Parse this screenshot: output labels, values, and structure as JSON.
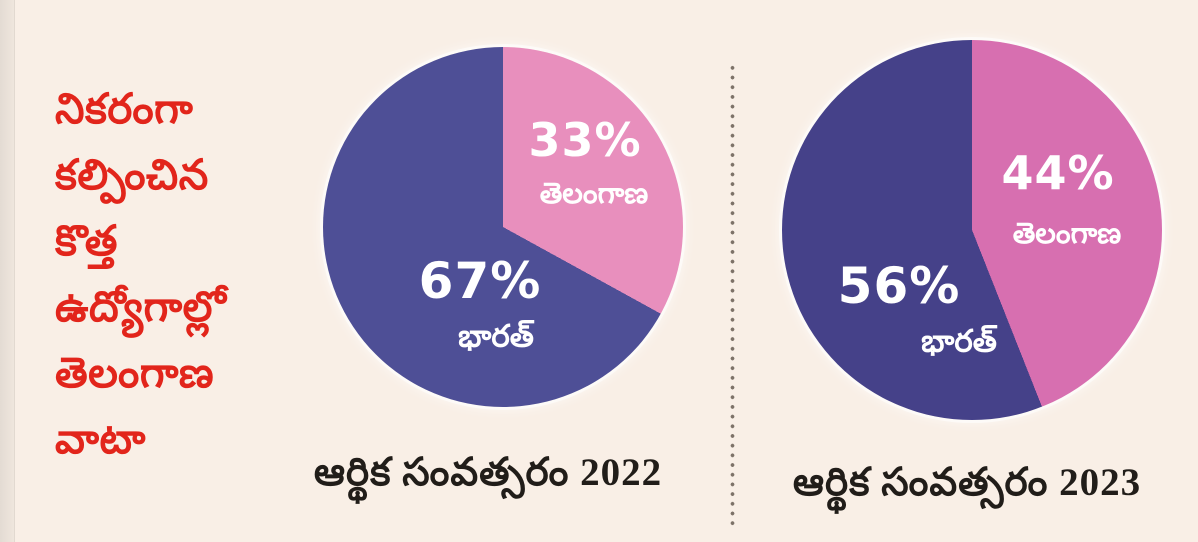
{
  "page": {
    "background_color": "#f9efe6",
    "divider_color": "#7d7268"
  },
  "headline": {
    "color": "#e2251b",
    "text": "నికరంగా కల్పించిన కొత్త ఉద్యోగాల్లో తెలంగాణ వాటా",
    "lines": [
      "నికరంగా",
      "కల్పించిన",
      "కొత్త",
      "ఉద్యోగాల్లో",
      "తెలంగాణ",
      "వాటా"
    ]
  },
  "chart_data": [
    {
      "type": "pie",
      "title": "ఆర్థిక సంవత్సరం 2022",
      "start_angle_deg": 0,
      "direction": "clockwise",
      "label_color": "#ffffff",
      "slices": [
        {
          "label": "తెలంగాణ",
          "value": 33,
          "value_label": "33%",
          "color": "#e88fbd"
        },
        {
          "label": "భారత్",
          "value": 67,
          "value_label": "67%",
          "color": "#4e4f96"
        }
      ]
    },
    {
      "type": "pie",
      "title": "ఆర్థిక సంవత్సరం 2023",
      "start_angle_deg": 0,
      "direction": "clockwise",
      "label_color": "#ffffff",
      "slices": [
        {
          "label": "తెలంగాణ",
          "value": 44,
          "value_label": "44%",
          "color": "#d76fb0"
        },
        {
          "label": "భారత్",
          "value": 56,
          "value_label": "56%",
          "color": "#454189"
        }
      ]
    }
  ]
}
